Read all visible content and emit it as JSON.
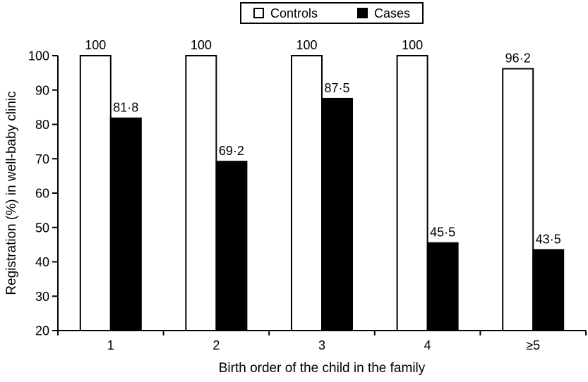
{
  "figure": {
    "background": "#ffffff",
    "foreground": "#000000"
  },
  "legend": {
    "items": [
      {
        "label": "Controls",
        "swatch": "white-square-icon",
        "color": "#ffffff"
      },
      {
        "label": "Cases",
        "swatch": "black-square-icon",
        "color": "#000000"
      }
    ]
  },
  "chart_data": {
    "type": "bar",
    "title": "",
    "xlabel": "Birth order of the child in the family",
    "ylabel": "Registration (%) in well-baby clinic",
    "categories": [
      "1",
      "2",
      "3",
      "4",
      "≥5"
    ],
    "series": [
      {
        "name": "Controls",
        "color": "#ffffff",
        "border_color": "#000000",
        "values": [
          100,
          100,
          100,
          100,
          96.2
        ],
        "value_labels": [
          "100",
          "100",
          "100",
          "100",
          "96·2"
        ]
      },
      {
        "name": "Cases",
        "color": "#000000",
        "border_color": "#000000",
        "values": [
          81.8,
          69.2,
          87.5,
          45.5,
          43.5
        ],
        "value_labels": [
          "81·8",
          "69·2",
          "87·5",
          "45·5",
          "43·5"
        ]
      }
    ],
    "ylim": [
      20,
      100
    ],
    "y_ticks": [
      20,
      30,
      40,
      50,
      60,
      70,
      80,
      90,
      100
    ],
    "grid": false,
    "legend_position": "top-center",
    "axis_color": "#000000"
  }
}
